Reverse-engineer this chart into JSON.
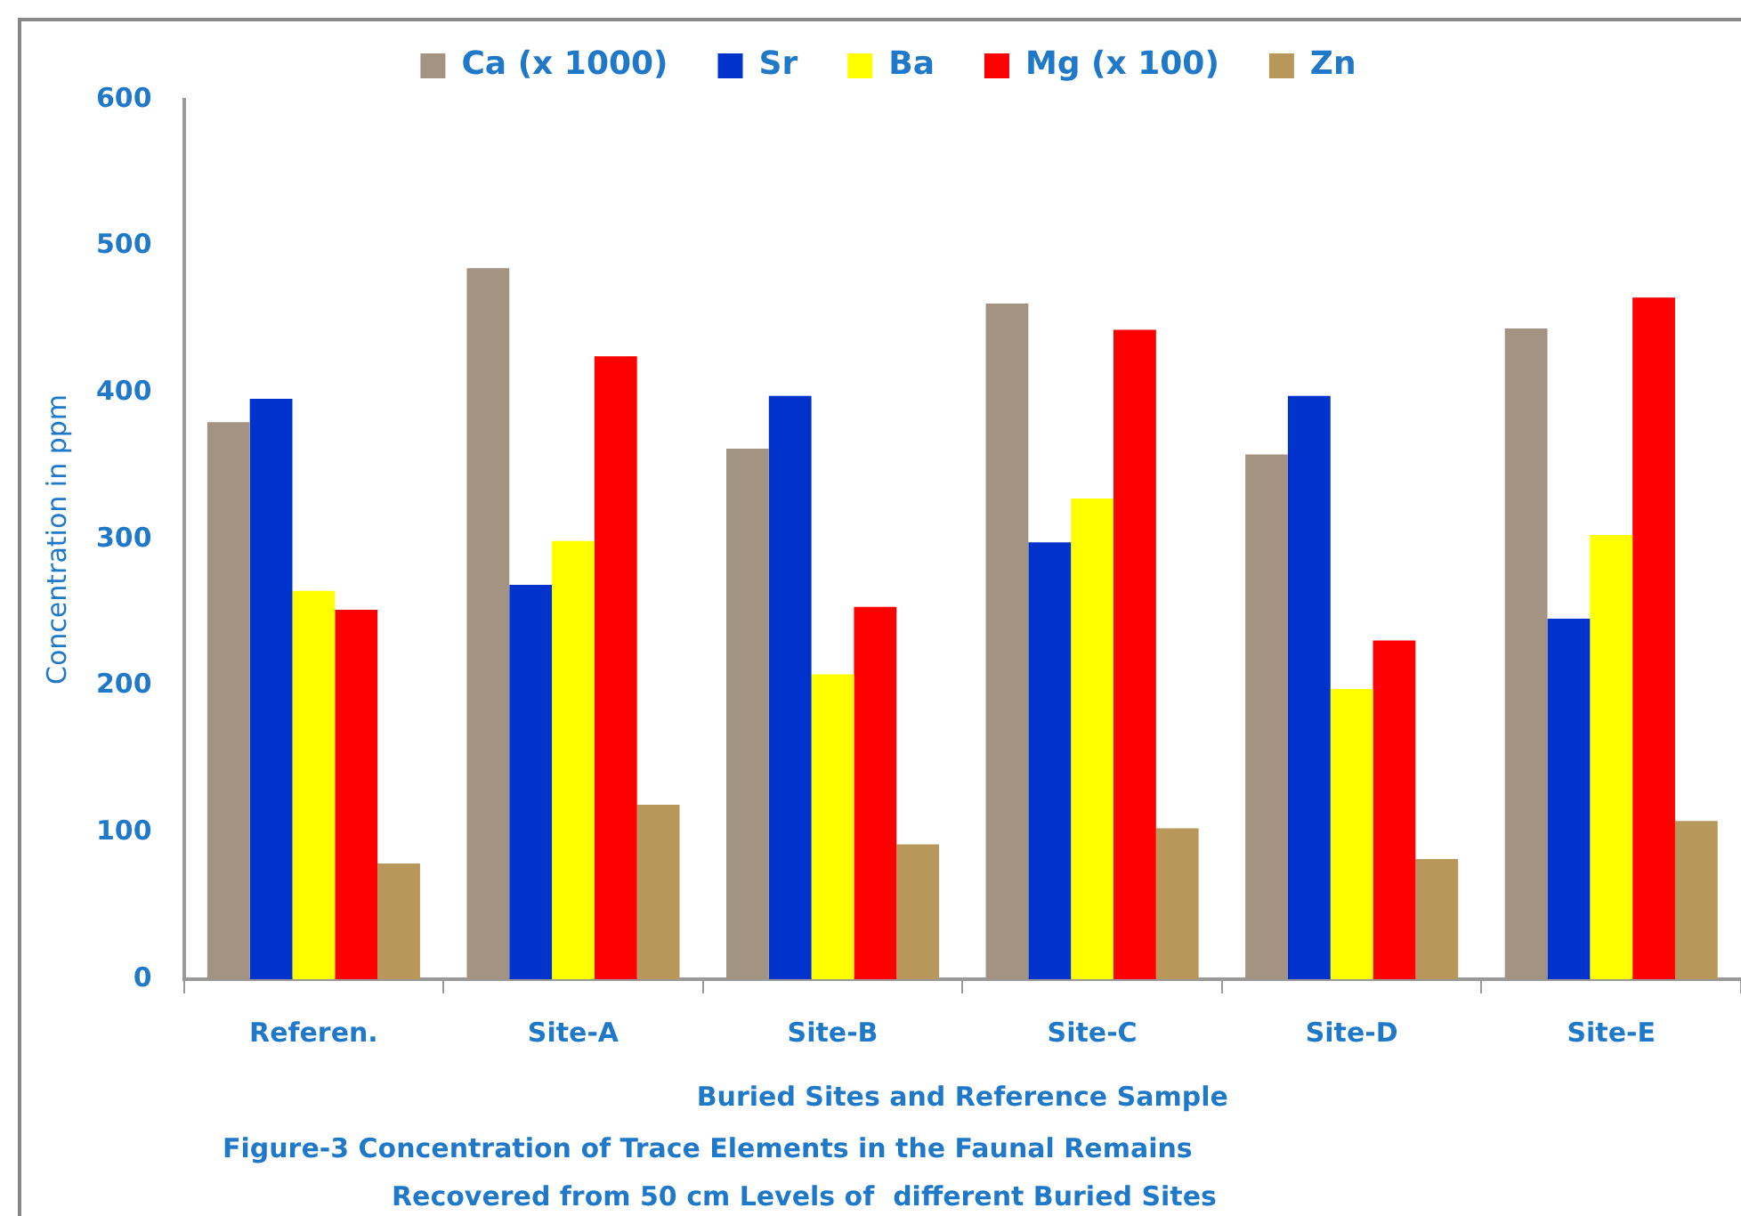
{
  "chart_data": {
    "type": "bar",
    "xlabel": "Buried Sites and Reference Sample",
    "ylabel": "Concentration in ppm",
    "categories": [
      "Referen.",
      "Site-A",
      "Site-B",
      "Site-C",
      "Site-D",
      "Site-E"
    ],
    "series": [
      {
        "name": "Ca (x 1000)",
        "color": "#a39383",
        "values": [
          380,
          485,
          362,
          461,
          358,
          444
        ]
      },
      {
        "name": "Sr",
        "color": "#0033cc",
        "values": [
          396,
          269,
          398,
          298,
          398,
          246
        ]
      },
      {
        "name": "Ba",
        "color": "#ffff00",
        "values": [
          265,
          299,
          208,
          328,
          198,
          303
        ]
      },
      {
        "name": "Mg (x 100)",
        "color": "#ff0000",
        "values": [
          252,
          425,
          254,
          443,
          231,
          465
        ]
      },
      {
        "name": "Zn",
        "color": "#b8975a",
        "values": [
          79,
          119,
          92,
          103,
          82,
          108
        ]
      }
    ],
    "ylim": [
      0,
      600
    ],
    "yticks": [
      0,
      100,
      200,
      300,
      400,
      500,
      600
    ],
    "grid": false,
    "legend": "top",
    "annotations": [
      "Figure-3 Concentration of Trace Elements in the Faunal Remains",
      "Recovered from 50 cm Levels of  different Buried Sites"
    ]
  }
}
